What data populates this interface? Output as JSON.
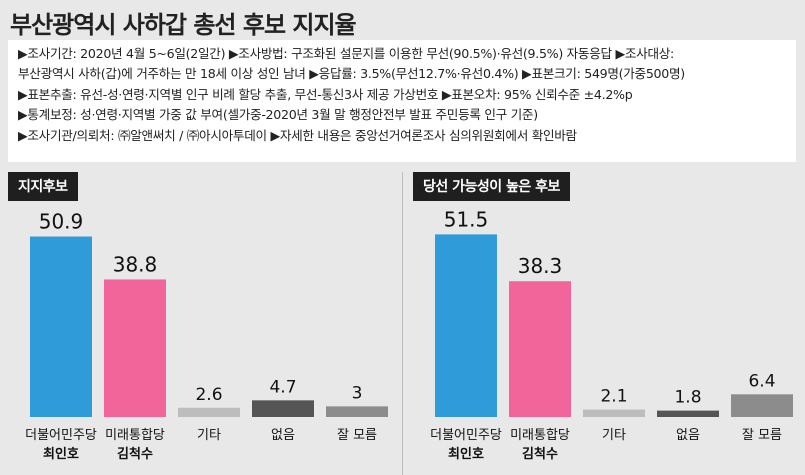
{
  "title": "부산광역시 사하갑 총선 후보 지지율",
  "info_lines": [
    "▶조사기간: 2020년 4월 5~6일(2일간) ▶조사방법: 구조화된 설문지를 이용한 무선(90.5%)·유선(9.5%) 자동응답 ▶조사대상:",
    "부산광역시 사하(갑)에 거주하는 만 18세 이상 성인 남녀 ▶응답률: 3.5%(무선12.7%·유선0.4%) ▶표본크기: 549명(가중500명)",
    "▶표본추출: 유선-성·연령·지역별 인구 비례 할당 추출, 무선-통신3사 제공 가상번호 ▶표본오차: 95% 신뢰수준 ±4.2%p",
    "▶통계보정: 성·연령·지역별 가중 값 부여(셀가중-2020년 3월 말 행정안전부 발표 주민등록 인구 기준)",
    "▶조사기관/의뢰처: ㈜알앤써치 / ㈜아시아투데이 ▶자세한 내용은 중앙선거여론조사 심의위원회에서 확인바람"
  ],
  "chart_data": [
    {
      "type": "bar",
      "title": "지지후보",
      "categories": [
        "더불어민주당 최인호",
        "미래통합당 김척수",
        "기타",
        "없음",
        "잘 모름"
      ],
      "category_lines": [
        [
          "더불어민주당",
          "최인호"
        ],
        [
          "미래통합당",
          "김척수"
        ],
        [
          "기타"
        ],
        [
          "없음"
        ],
        [
          "잘 모름"
        ]
      ],
      "values": [
        50.9,
        38.8,
        2.6,
        4.7,
        3
      ],
      "value_labels": [
        "50.9",
        "38.8",
        "2.6",
        "4.7",
        "3"
      ],
      "colors": [
        "#2f9bd8",
        "#f2659a",
        "#bdbdbd",
        "#555555",
        "#8c8c8c"
      ],
      "ylim": [
        0,
        55
      ]
    },
    {
      "type": "bar",
      "title": "당선 가능성이 높은 후보",
      "categories": [
        "더불어민주당 최인호",
        "미래통합당 김척수",
        "기타",
        "없음",
        "잘 모름"
      ],
      "category_lines": [
        [
          "더불어민주당",
          "최인호"
        ],
        [
          "미래통합당",
          "김척수"
        ],
        [
          "기타"
        ],
        [
          "없음"
        ],
        [
          "잘 모름"
        ]
      ],
      "values": [
        51.5,
        38.3,
        2.1,
        1.8,
        6.4
      ],
      "value_labels": [
        "51.5",
        "38.3",
        "2.1",
        "1.8",
        "6.4"
      ],
      "colors": [
        "#2f9bd8",
        "#f2659a",
        "#bdbdbd",
        "#555555",
        "#8c8c8c"
      ],
      "ylim": [
        0,
        55
      ]
    }
  ]
}
